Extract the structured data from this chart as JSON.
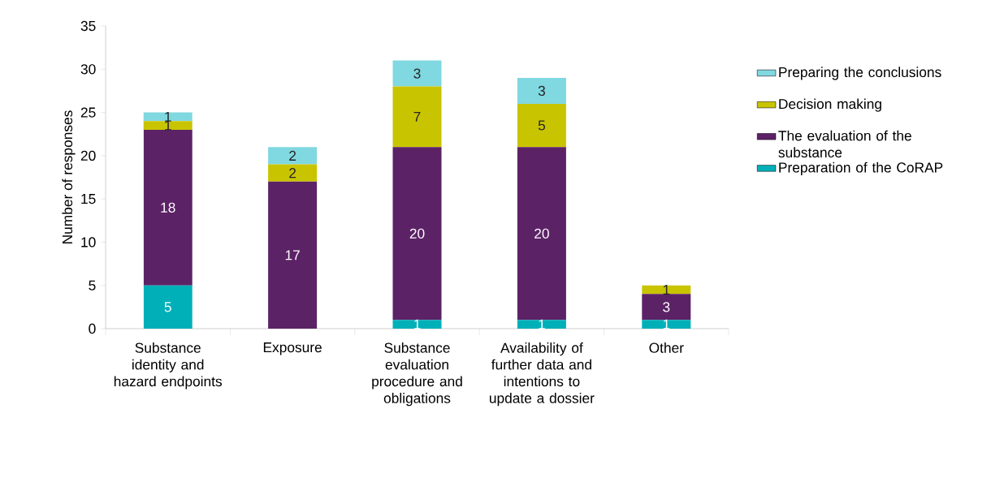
{
  "chart_data": {
    "type": "bar",
    "stacked": true,
    "categories": [
      "Substance identity and hazard endpoints",
      "Exposure",
      "Substance evaluation procedure and obligations",
      "Availability of further data and intentions to update a dossier",
      "Other"
    ],
    "ylabel": "Number of responses",
    "ylim": [
      0,
      35
    ],
    "yticks": [
      0,
      5,
      10,
      15,
      20,
      25,
      30,
      35
    ],
    "series": [
      {
        "name": "Preparation of the CoRAP",
        "color": "#00b0b9",
        "values": [
          5,
          null,
          1,
          1,
          1
        ]
      },
      {
        "name": "The evaluation of the substance",
        "color": "#5c2266",
        "values": [
          18,
          17,
          20,
          20,
          3
        ]
      },
      {
        "name": "Decision making",
        "color": "#c9c400",
        "values": [
          1,
          2,
          7,
          5,
          1
        ]
      },
      {
        "name": "Preparing the conclusions",
        "color": "#80d8e0",
        "values": [
          1,
          2,
          3,
          3,
          null
        ]
      }
    ],
    "data_labels": true,
    "legend": "right",
    "grid": false
  }
}
